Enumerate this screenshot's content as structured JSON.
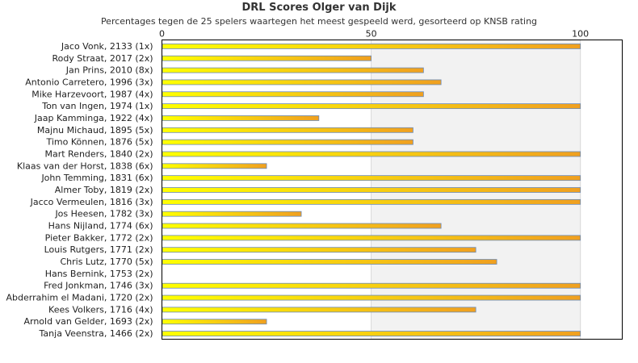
{
  "chart_data": {
    "type": "bar",
    "orientation": "horizontal",
    "title": "DRL Scores Olger van Dijk",
    "subtitle": "Percentages tegen de 25 spelers waartegen het meest gespeeld werd, gesorteerd op KNSB rating",
    "xlim": [
      0,
      110
    ],
    "xticks": [
      0,
      50,
      100
    ],
    "categories": [
      "Jaco Vonk, 2133 (1x)",
      "Rody Straat, 2017 (2x)",
      "Jan Prins, 2010 (8x)",
      "Antonio Carretero, 1996 (3x)",
      "Mike Harzevoort, 1987 (4x)",
      "Ton van Ingen, 1974 (1x)",
      "Jaap Kamminga, 1922 (4x)",
      "Majnu Michaud, 1895 (5x)",
      "Timo Können, 1876 (5x)",
      "Mart Renders, 1840 (2x)",
      "Klaas van der Horst, 1838 (6x)",
      "John Temming, 1831 (6x)",
      "Almer Toby, 1819 (2x)",
      "Jacco Vermeulen, 1816 (3x)",
      "Jos Heesen, 1782 (3x)",
      "Hans Nijland, 1774 (6x)",
      "Pieter Bakker, 1772 (2x)",
      "Louis Rutgers, 1771 (2x)",
      "Chris Lutz, 1770 (5x)",
      "Hans Bernink, 1753 (2x)",
      "Fred Jonkman, 1746 (3x)",
      "Abderrahim el Madani, 1720 (2x)",
      "Kees Volkers, 1716 (4x)",
      "Arnold van Gelder, 1693 (2x)",
      "Tanja Veenstra, 1466 (2x)"
    ],
    "values": [
      100,
      50,
      62.5,
      66.7,
      62.5,
      100,
      37.5,
      60,
      60,
      100,
      25,
      100,
      100,
      100,
      33.3,
      66.7,
      100,
      75,
      80,
      0,
      100,
      100,
      75,
      25,
      100
    ],
    "grid": true,
    "colors": {
      "bar_start": "#ffff00",
      "bar_end": "#f0a020",
      "bar_stroke": "#6a8ab8",
      "band_light": "#ffffff",
      "band_shade": "#f2f2f2",
      "axis": "#000000",
      "grid": "#d8d8d8"
    }
  }
}
